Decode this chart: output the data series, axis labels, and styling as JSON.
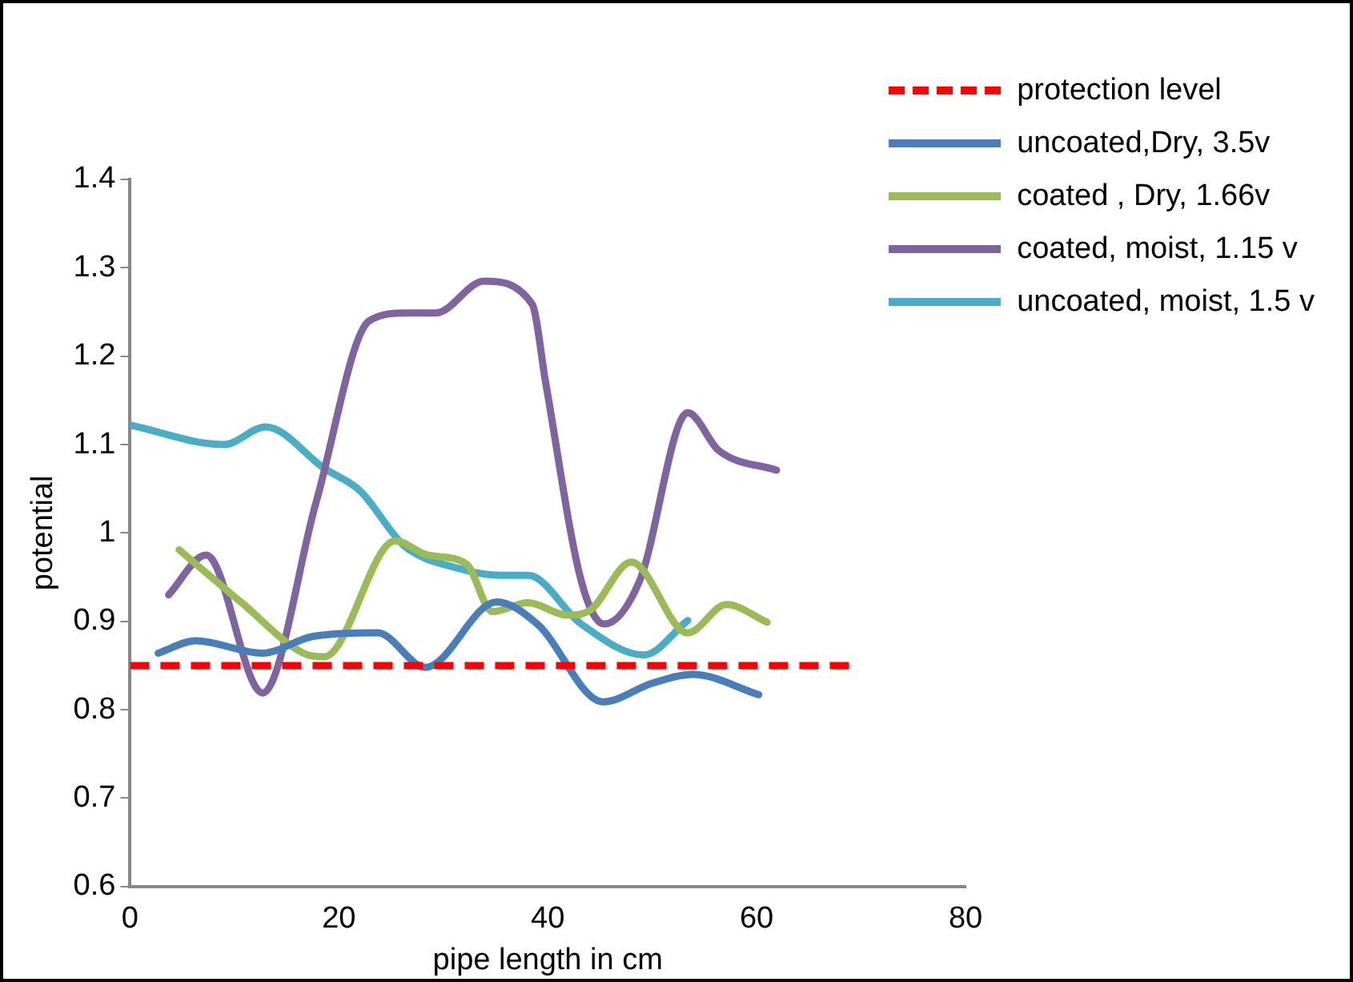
{
  "chart_data": {
    "type": "line",
    "xlabel": "pipe length in cm",
    "ylabel": "potential",
    "xlim": [
      0,
      80
    ],
    "xticks": [
      0,
      20,
      40,
      60,
      80
    ],
    "ylim": [
      0.6,
      1.4
    ],
    "yticks": [
      {
        "value": 0.6,
        "label": "0.6"
      },
      {
        "value": 0.7,
        "label": "0.7"
      },
      {
        "value": 0.8,
        "label": "0.8"
      },
      {
        "value": 0.9,
        "label": "0.9"
      },
      {
        "value": 1,
        "label": "1"
      },
      {
        "value": 1.1,
        "label": "1.1"
      },
      {
        "value": 1.2,
        "label": "1.2"
      },
      {
        "value": 1.3,
        "label": "1.3"
      },
      {
        "value": 1.4,
        "label": "1.4"
      }
    ],
    "grid": false,
    "legend": "top right",
    "marker": "none",
    "series": [
      {
        "name": "protection level",
        "color": "#ff0000",
        "line_style": "dashed",
        "x": [
          0,
          69
        ],
        "values": [
          0.85,
          0.85
        ]
      },
      {
        "name": "uncoated,Dry, 3.5v",
        "color": "#4a7ebb",
        "x": [
          2.7,
          6.3,
          12.7,
          17.5,
          23.7,
          28.3,
          35.1,
          39,
          45.3,
          50,
          53.9,
          60.2
        ],
        "values": [
          0.864,
          0.878,
          0.864,
          0.883,
          0.887,
          0.848,
          0.922,
          0.897,
          0.809,
          0.83,
          0.84,
          0.817
        ]
      },
      {
        "name": "coated , Dry, 1.66v",
        "color": "#9bbb59",
        "x": [
          4.7,
          10.7,
          16.6,
          18.6,
          25.4,
          28.5,
          32.2,
          34.7,
          38.1,
          41.9,
          44.1,
          48,
          53.4,
          57.1,
          61
        ],
        "values": [
          0.981,
          0.921,
          0.864,
          0.86,
          0.991,
          0.975,
          0.965,
          0.911,
          0.921,
          0.907,
          0.913,
          0.967,
          0.887,
          0.919,
          0.899
        ]
      },
      {
        "name": "coated, moist, 1.15 v",
        "color": "#8064a2",
        "x": [
          3.7,
          7.3,
          12.7,
          17.8,
          22.9,
          26.6,
          29.3,
          33.9,
          38.5,
          39.8,
          43.2,
          45.4,
          48.8,
          53.4,
          56.4,
          61.9
        ],
        "values": [
          0.93,
          0.975,
          0.819,
          1.034,
          1.24,
          1.249,
          1.249,
          1.285,
          1.259,
          1.17,
          0.946,
          0.897,
          0.946,
          1.136,
          1.093,
          1.071
        ]
      },
      {
        "name": "uncoated, moist, 1.5 v",
        "color": "#4bacc6",
        "x": [
          0,
          9,
          13,
          18.6,
          22,
          26.3,
          31.4,
          35.6,
          38.1,
          43.2,
          49.2,
          53.4
        ],
        "values": [
          1.122,
          1.1,
          1.12,
          1.073,
          1.048,
          0.985,
          0.96,
          0.952,
          0.952,
          0.897,
          0.862,
          0.901
        ]
      }
    ]
  }
}
